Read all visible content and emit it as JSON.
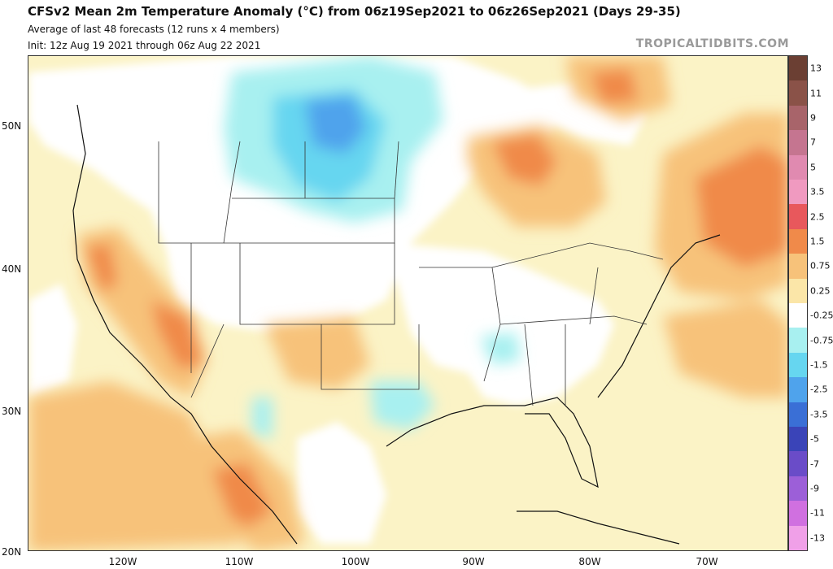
{
  "header": {
    "title": "CFSv2 Mean 2m Temperature Anomaly (°C) from 06z19Sep2021 to 06z26Sep2021 (Days 29-35)",
    "subtitle_line1": "Average of last 48 forecasts (12 runs x 4 members)",
    "subtitle_line2": "Init: 12z Aug 19 2021 through 06z Aug 22 2021",
    "watermark": "TROPICALTIDBITS.COM"
  },
  "map": {
    "latitude_labels": [
      "50N",
      "40N",
      "30N",
      "20N"
    ],
    "longitude_labels": [
      "120W",
      "110W",
      "100W",
      "90W",
      "80W",
      "70W"
    ],
    "background_color": "#fbf3c6",
    "land_boundary_color": "#111111",
    "state_boundary_color": "#222222"
  },
  "colorbar": {
    "labels": [
      "13",
      "11",
      "9",
      "7",
      "5",
      "3.5",
      "2.5",
      "1.5",
      "0.75",
      "0.25",
      "-0.25",
      "-0.75",
      "-1.5",
      "-2.5",
      "-3.5",
      "-5",
      "-7",
      "-9",
      "-11",
      "-13"
    ],
    "colors": [
      "#6b3f33",
      "#8a5248",
      "#a8646a",
      "#c57590",
      "#e08ab0",
      "#f09ac0",
      "#e8585c",
      "#f08a4a",
      "#f7c27a",
      "#fbe6a8",
      "#ffffff",
      "#a8f0f0",
      "#66d6f0",
      "#4fa3ec",
      "#3a6fd6",
      "#3a44b8",
      "#6a4cc8",
      "#9c5fd8",
      "#d070e0",
      "#f0a0e8"
    ]
  }
}
